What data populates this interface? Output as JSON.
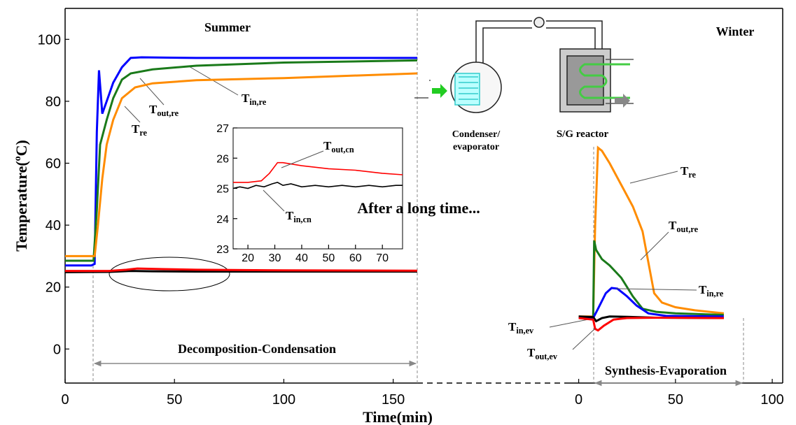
{
  "chart_data": [
    {
      "type": "line",
      "title": "Summer",
      "x_label": "Time(min)",
      "y_label": {
        "text": "Temperature(",
        "sup": "o",
        "text_end": "C)"
      },
      "annotation": "Decomposition-Condensation",
      "xlim": [
        0,
        161
      ],
      "xticks": [
        0,
        50,
        100,
        150
      ],
      "ylim": [
        -11,
        110
      ],
      "yticks": [
        0,
        20,
        40,
        60,
        80,
        100
      ],
      "series": [
        {
          "name": {
            "base": "T",
            "sub": "in,re"
          },
          "color": "#0000ff",
          "x": [
            0,
            12,
            13.5,
            14.5,
            15.5,
            17,
            19,
            22,
            26,
            30,
            35,
            60,
            100,
            161
          ],
          "values": [
            27,
            27,
            27.5,
            70,
            90,
            76,
            80,
            86,
            91,
            94,
            94.2,
            94,
            94,
            94
          ]
        },
        {
          "name": {
            "base": "T",
            "sub": "out,re"
          },
          "color": "#1a7a1a",
          "x": [
            0,
            13,
            14.5,
            16,
            19,
            22,
            26,
            30,
            40,
            60,
            100,
            161
          ],
          "values": [
            28.5,
            28.5,
            45,
            66,
            74,
            81,
            87,
            89,
            90.3,
            91.5,
            92.5,
            93.2
          ]
        },
        {
          "name": {
            "base": "T",
            "sub": "re"
          },
          "color": "#ff8c00",
          "x": [
            0,
            13.5,
            15,
            17,
            19,
            22,
            26,
            32,
            40,
            60,
            100,
            161
          ],
          "values": [
            30,
            30,
            40,
            55,
            66,
            74,
            81,
            84.5,
            85.8,
            86.8,
            87.5,
            89
          ]
        },
        {
          "color": "#000000",
          "x": [
            0,
            20,
            30,
            40,
            60,
            100,
            161
          ],
          "values": [
            24.8,
            24.9,
            25.2,
            25.1,
            25,
            25,
            25
          ]
        },
        {
          "color": "#ff0000",
          "x": [
            0,
            20,
            28,
            33,
            45,
            60,
            100,
            161
          ],
          "values": [
            25.2,
            25.2,
            25.6,
            26,
            25.8,
            25.6,
            25.4,
            25.3
          ]
        }
      ]
    },
    {
      "type": "line",
      "title": "Winter",
      "annotation": "Synthesis-Evaporation",
      "note": "After a long time...",
      "diagram_labels": [
        "Condenser/",
        "evaporator",
        "S/G reactor"
      ],
      "xlim": [
        -6,
        105.4
      ],
      "xticks": [
        0,
        50,
        100
      ],
      "ylim": [
        -11,
        110
      ],
      "series": [
        {
          "name": {
            "base": "T",
            "sub": "re"
          },
          "color": "#ff8c00",
          "x": [
            0,
            7.5,
            8.5,
            10,
            12,
            16,
            22,
            28,
            33,
            36,
            39,
            43,
            50,
            60,
            75
          ],
          "values": [
            10.5,
            10.5,
            40,
            65,
            64,
            60,
            53,
            46,
            38,
            28,
            18,
            15,
            13.5,
            12.5,
            11.5
          ]
        },
        {
          "name": {
            "base": "T",
            "sub": "out,re"
          },
          "color": "#1a7a1a",
          "x": [
            0,
            7.5,
            8,
            9,
            12,
            16,
            22,
            28,
            33,
            40,
            50,
            75
          ],
          "values": [
            10,
            10,
            35,
            32,
            29,
            27,
            23,
            17,
            13,
            12,
            11.5,
            11
          ]
        },
        {
          "name": {
            "base": "T",
            "sub": "in,re"
          },
          "color": "#0000ff",
          "x": [
            0,
            7.5,
            10,
            14,
            17,
            20,
            25,
            30,
            36,
            45,
            75
          ],
          "values": [
            10,
            10,
            13,
            18,
            19.7,
            19.5,
            17,
            14,
            11.5,
            10.7,
            10.5
          ]
        },
        {
          "name": {
            "base": "T",
            "sub": "in,ev"
          },
          "color": "#000000",
          "x": [
            0,
            7.5,
            9,
            12,
            16,
            25,
            40,
            75
          ],
          "values": [
            10.5,
            10.3,
            9,
            10,
            10.5,
            10.4,
            10.1,
            10
          ]
        },
        {
          "name": {
            "base": "T",
            "sub": "out,ev"
          },
          "color": "#ff0000",
          "x": [
            0,
            7.5,
            8.5,
            10,
            13,
            18,
            25,
            40,
            75
          ],
          "values": [
            10,
            9.5,
            6.5,
            6,
            7.5,
            9.5,
            10,
            10.1,
            10
          ]
        }
      ]
    },
    {
      "type": "line",
      "xlim": [
        14.5,
        77.5
      ],
      "xticks": [
        20,
        30,
        40,
        50,
        60,
        70
      ],
      "ylim": [
        23,
        27
      ],
      "yticks": [
        23,
        24,
        25,
        26,
        27
      ],
      "series": [
        {
          "name": {
            "base": "T",
            "sub": "out,cn"
          },
          "color": "#ff0000",
          "x": [
            14.5,
            20,
            25,
            28,
            31,
            33,
            40,
            50,
            60,
            70,
            77.5
          ],
          "values": [
            25.2,
            25.2,
            25.25,
            25.5,
            25.85,
            25.85,
            25.75,
            25.65,
            25.6,
            25.5,
            25.45
          ]
        },
        {
          "name": {
            "base": "T",
            "sub": "in,cn"
          },
          "color": "#000000",
          "x": [
            14.5,
            17,
            20,
            23,
            26,
            29,
            31,
            33,
            36,
            40,
            45,
            50,
            55,
            60,
            65,
            70,
            75,
            77.5
          ],
          "values": [
            25,
            25.05,
            25,
            25.1,
            25.05,
            25.15,
            25.2,
            25.1,
            25.15,
            25.05,
            25.1,
            25.05,
            25.1,
            25.05,
            25.1,
            25.05,
            25.1,
            25.1
          ]
        }
      ]
    }
  ]
}
